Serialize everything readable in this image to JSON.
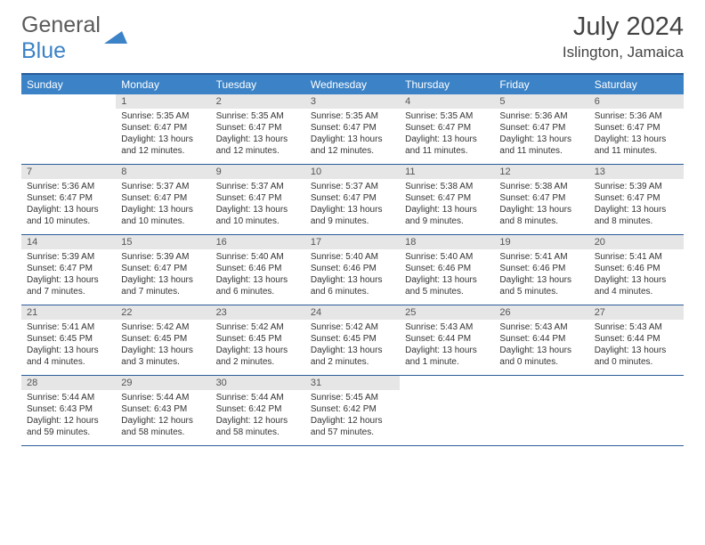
{
  "logo": {
    "text1": "General",
    "text2": "Blue"
  },
  "title": "July 2024",
  "location": "Islington, Jamaica",
  "colors": {
    "header_bg": "#3b82c7",
    "border": "#2a5c9a",
    "daynum_bg": "#e6e6e6",
    "text": "#444444"
  },
  "weekdays": [
    "Sunday",
    "Monday",
    "Tuesday",
    "Wednesday",
    "Thursday",
    "Friday",
    "Saturday"
  ],
  "weeks": [
    [
      {
        "num": "",
        "sunrise": "",
        "sunset": "",
        "daylight": ""
      },
      {
        "num": "1",
        "sunrise": "Sunrise: 5:35 AM",
        "sunset": "Sunset: 6:47 PM",
        "daylight": "Daylight: 13 hours and 12 minutes."
      },
      {
        "num": "2",
        "sunrise": "Sunrise: 5:35 AM",
        "sunset": "Sunset: 6:47 PM",
        "daylight": "Daylight: 13 hours and 12 minutes."
      },
      {
        "num": "3",
        "sunrise": "Sunrise: 5:35 AM",
        "sunset": "Sunset: 6:47 PM",
        "daylight": "Daylight: 13 hours and 12 minutes."
      },
      {
        "num": "4",
        "sunrise": "Sunrise: 5:35 AM",
        "sunset": "Sunset: 6:47 PM",
        "daylight": "Daylight: 13 hours and 11 minutes."
      },
      {
        "num": "5",
        "sunrise": "Sunrise: 5:36 AM",
        "sunset": "Sunset: 6:47 PM",
        "daylight": "Daylight: 13 hours and 11 minutes."
      },
      {
        "num": "6",
        "sunrise": "Sunrise: 5:36 AM",
        "sunset": "Sunset: 6:47 PM",
        "daylight": "Daylight: 13 hours and 11 minutes."
      }
    ],
    [
      {
        "num": "7",
        "sunrise": "Sunrise: 5:36 AM",
        "sunset": "Sunset: 6:47 PM",
        "daylight": "Daylight: 13 hours and 10 minutes."
      },
      {
        "num": "8",
        "sunrise": "Sunrise: 5:37 AM",
        "sunset": "Sunset: 6:47 PM",
        "daylight": "Daylight: 13 hours and 10 minutes."
      },
      {
        "num": "9",
        "sunrise": "Sunrise: 5:37 AM",
        "sunset": "Sunset: 6:47 PM",
        "daylight": "Daylight: 13 hours and 10 minutes."
      },
      {
        "num": "10",
        "sunrise": "Sunrise: 5:37 AM",
        "sunset": "Sunset: 6:47 PM",
        "daylight": "Daylight: 13 hours and 9 minutes."
      },
      {
        "num": "11",
        "sunrise": "Sunrise: 5:38 AM",
        "sunset": "Sunset: 6:47 PM",
        "daylight": "Daylight: 13 hours and 9 minutes."
      },
      {
        "num": "12",
        "sunrise": "Sunrise: 5:38 AM",
        "sunset": "Sunset: 6:47 PM",
        "daylight": "Daylight: 13 hours and 8 minutes."
      },
      {
        "num": "13",
        "sunrise": "Sunrise: 5:39 AM",
        "sunset": "Sunset: 6:47 PM",
        "daylight": "Daylight: 13 hours and 8 minutes."
      }
    ],
    [
      {
        "num": "14",
        "sunrise": "Sunrise: 5:39 AM",
        "sunset": "Sunset: 6:47 PM",
        "daylight": "Daylight: 13 hours and 7 minutes."
      },
      {
        "num": "15",
        "sunrise": "Sunrise: 5:39 AM",
        "sunset": "Sunset: 6:47 PM",
        "daylight": "Daylight: 13 hours and 7 minutes."
      },
      {
        "num": "16",
        "sunrise": "Sunrise: 5:40 AM",
        "sunset": "Sunset: 6:46 PM",
        "daylight": "Daylight: 13 hours and 6 minutes."
      },
      {
        "num": "17",
        "sunrise": "Sunrise: 5:40 AM",
        "sunset": "Sunset: 6:46 PM",
        "daylight": "Daylight: 13 hours and 6 minutes."
      },
      {
        "num": "18",
        "sunrise": "Sunrise: 5:40 AM",
        "sunset": "Sunset: 6:46 PM",
        "daylight": "Daylight: 13 hours and 5 minutes."
      },
      {
        "num": "19",
        "sunrise": "Sunrise: 5:41 AM",
        "sunset": "Sunset: 6:46 PM",
        "daylight": "Daylight: 13 hours and 5 minutes."
      },
      {
        "num": "20",
        "sunrise": "Sunrise: 5:41 AM",
        "sunset": "Sunset: 6:46 PM",
        "daylight": "Daylight: 13 hours and 4 minutes."
      }
    ],
    [
      {
        "num": "21",
        "sunrise": "Sunrise: 5:41 AM",
        "sunset": "Sunset: 6:45 PM",
        "daylight": "Daylight: 13 hours and 4 minutes."
      },
      {
        "num": "22",
        "sunrise": "Sunrise: 5:42 AM",
        "sunset": "Sunset: 6:45 PM",
        "daylight": "Daylight: 13 hours and 3 minutes."
      },
      {
        "num": "23",
        "sunrise": "Sunrise: 5:42 AM",
        "sunset": "Sunset: 6:45 PM",
        "daylight": "Daylight: 13 hours and 2 minutes."
      },
      {
        "num": "24",
        "sunrise": "Sunrise: 5:42 AM",
        "sunset": "Sunset: 6:45 PM",
        "daylight": "Daylight: 13 hours and 2 minutes."
      },
      {
        "num": "25",
        "sunrise": "Sunrise: 5:43 AM",
        "sunset": "Sunset: 6:44 PM",
        "daylight": "Daylight: 13 hours and 1 minute."
      },
      {
        "num": "26",
        "sunrise": "Sunrise: 5:43 AM",
        "sunset": "Sunset: 6:44 PM",
        "daylight": "Daylight: 13 hours and 0 minutes."
      },
      {
        "num": "27",
        "sunrise": "Sunrise: 5:43 AM",
        "sunset": "Sunset: 6:44 PM",
        "daylight": "Daylight: 13 hours and 0 minutes."
      }
    ],
    [
      {
        "num": "28",
        "sunrise": "Sunrise: 5:44 AM",
        "sunset": "Sunset: 6:43 PM",
        "daylight": "Daylight: 12 hours and 59 minutes."
      },
      {
        "num": "29",
        "sunrise": "Sunrise: 5:44 AM",
        "sunset": "Sunset: 6:43 PM",
        "daylight": "Daylight: 12 hours and 58 minutes."
      },
      {
        "num": "30",
        "sunrise": "Sunrise: 5:44 AM",
        "sunset": "Sunset: 6:42 PM",
        "daylight": "Daylight: 12 hours and 58 minutes."
      },
      {
        "num": "31",
        "sunrise": "Sunrise: 5:45 AM",
        "sunset": "Sunset: 6:42 PM",
        "daylight": "Daylight: 12 hours and 57 minutes."
      },
      {
        "num": "",
        "sunrise": "",
        "sunset": "",
        "daylight": ""
      },
      {
        "num": "",
        "sunrise": "",
        "sunset": "",
        "daylight": ""
      },
      {
        "num": "",
        "sunrise": "",
        "sunset": "",
        "daylight": ""
      }
    ]
  ]
}
